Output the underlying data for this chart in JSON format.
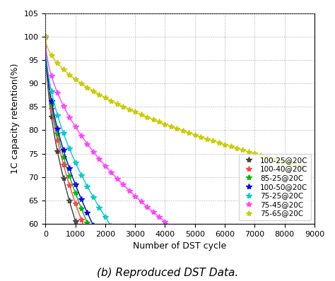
{
  "title": "",
  "xlabel": "Number of DST cycle",
  "ylabel": "1C capacity retention(%)",
  "caption": "(b) Reproduced DST Data.",
  "xlim": [
    0,
    9000
  ],
  "ylim": [
    60,
    105
  ],
  "yticks": [
    60,
    65,
    70,
    75,
    80,
    85,
    90,
    95,
    100,
    105
  ],
  "xticks": [
    0,
    1000,
    2000,
    3000,
    4000,
    5000,
    6000,
    7000,
    8000,
    9000
  ],
  "series": [
    {
      "label": "100-25@20C",
      "color": "#404040",
      "x_max": 5200,
      "a": 0.01085,
      "b": 0.52
    },
    {
      "label": "100-40@20C",
      "color": "#FF4444",
      "x_max": 5400,
      "a": 0.0098,
      "b": 0.52
    },
    {
      "label": "85-25@20C",
      "color": "#00BB00",
      "x_max": 5400,
      "a": 0.0092,
      "b": 0.52
    },
    {
      "label": "100-50@20C",
      "color": "#0000EE",
      "x_max": 5600,
      "a": 0.0087,
      "b": 0.52
    },
    {
      "label": "75-25@20C",
      "color": "#00CCCC",
      "x_max": 6600,
      "a": 0.0074,
      "b": 0.52
    },
    {
      "label": "75-45@20C",
      "color": "#FF44FF",
      "x_max": 6600,
      "a": 0.0053,
      "b": 0.52
    },
    {
      "label": "75-65@20C",
      "color": "#CCCC00",
      "x_max": 8600,
      "a": 0.0025,
      "b": 0.52
    }
  ],
  "marker_step": 200,
  "grid_color": "#AAAAAA",
  "grid_linestyle": ":",
  "bg_color": "#FFFFFF",
  "legend_fontsize": 7.5,
  "axis_fontsize": 9,
  "tick_fontsize": 8,
  "caption_fontsize": 11,
  "marker": "*",
  "markersize": 6,
  "linewidth": 1.0
}
